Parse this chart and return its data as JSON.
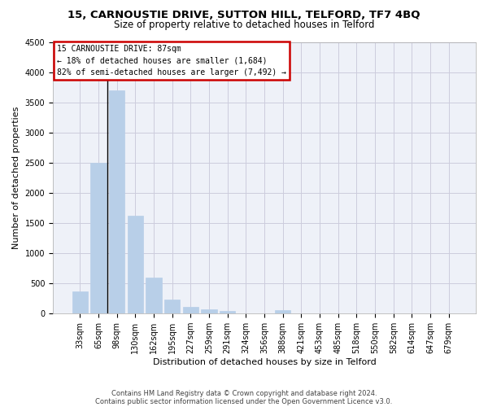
{
  "title": "15, CARNOUSTIE DRIVE, SUTTON HILL, TELFORD, TF7 4BQ",
  "subtitle": "Size of property relative to detached houses in Telford",
  "xlabel": "Distribution of detached houses by size in Telford",
  "ylabel": "Number of detached properties",
  "categories": [
    "33sqm",
    "65sqm",
    "98sqm",
    "130sqm",
    "162sqm",
    "195sqm",
    "227sqm",
    "259sqm",
    "291sqm",
    "324sqm",
    "356sqm",
    "388sqm",
    "421sqm",
    "453sqm",
    "485sqm",
    "518sqm",
    "550sqm",
    "582sqm",
    "614sqm",
    "647sqm",
    "679sqm"
  ],
  "values": [
    370,
    2500,
    3700,
    1620,
    590,
    230,
    105,
    65,
    40,
    0,
    0,
    55,
    0,
    0,
    0,
    0,
    0,
    0,
    0,
    0,
    0
  ],
  "bar_color": "#b8cfe8",
  "annotation_text_line1": "15 CARNOUSTIE DRIVE: 87sqm",
  "annotation_text_line2": "← 18% of detached houses are smaller (1,684)",
  "annotation_text_line3": "82% of semi-detached houses are larger (7,492) →",
  "annotation_box_facecolor": "#ffffff",
  "annotation_box_edgecolor": "#cc0000",
  "vline_color": "#000000",
  "ylim_max": 4500,
  "yticks": [
    0,
    500,
    1000,
    1500,
    2000,
    2500,
    3000,
    3500,
    4000,
    4500
  ],
  "grid_color": "#ccccdd",
  "bg_color": "#eef1f8",
  "footer_line1": "Contains HM Land Registry data © Crown copyright and database right 2024.",
  "footer_line2": "Contains public sector information licensed under the Open Government Licence v3.0.",
  "title_fontsize": 9.5,
  "subtitle_fontsize": 8.5,
  "xlabel_fontsize": 8,
  "ylabel_fontsize": 8,
  "annotation_fontsize": 7,
  "tick_fontsize": 7,
  "footer_fontsize": 6
}
